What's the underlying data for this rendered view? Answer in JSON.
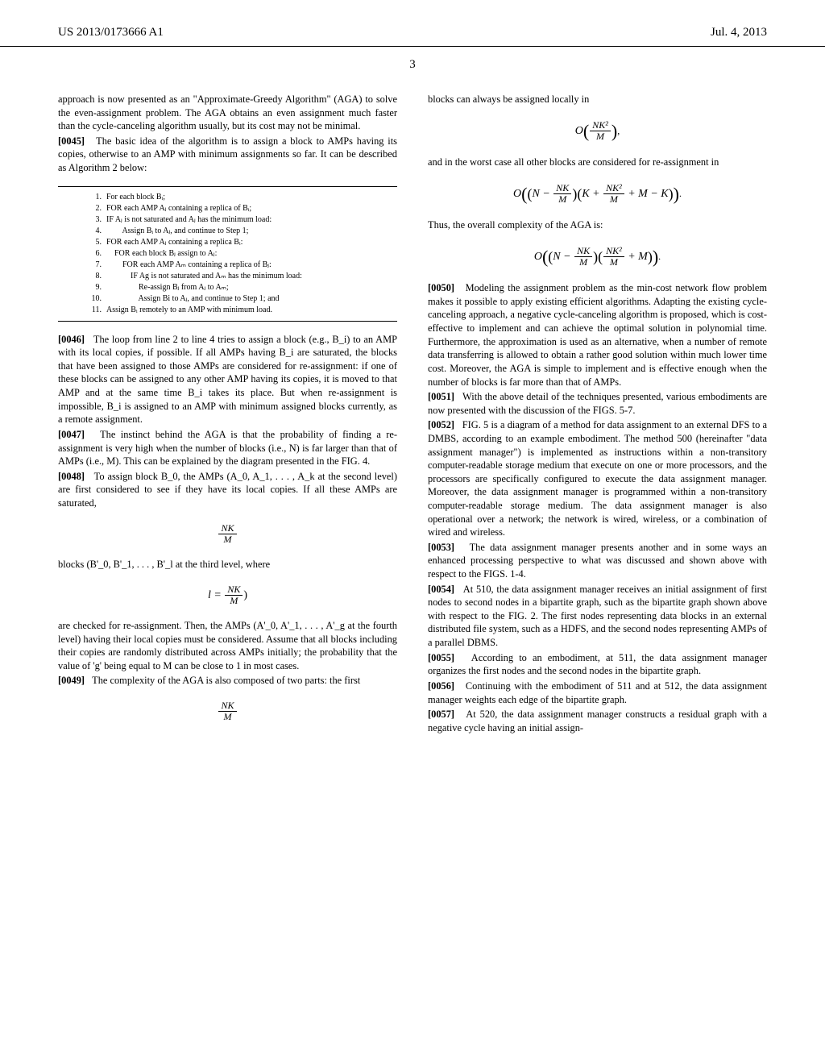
{
  "header": {
    "pub_number": "US 2013/0173666 A1",
    "date": "Jul. 4, 2013"
  },
  "page_number": "3",
  "left_col": {
    "p_intro": "approach is now presented as an \"Approximate-Greedy Algorithm\" (AGA) to solve the even-assignment problem. The AGA obtains an even assignment much faster than the cycle-canceling algorithm usually, but its cost may not be minimal.",
    "p0045_num": "[0045]",
    "p0045": "The basic idea of the algorithm is to assign a block to AMPs having its copies, otherwise to an AMP with minimum assignments so far. It can be described as Algorithm 2 below:",
    "algorithm": [
      {
        "n": "1.",
        "t": "For each block Bᵢ;",
        "indent": 0
      },
      {
        "n": "2.",
        "t": "FOR each AMP Aⱼ containing a replica of Bᵢ;",
        "indent": 0
      },
      {
        "n": "3.",
        "t": "IF Aⱼ is not saturated and Aⱼ has the minimum load:",
        "indent": 0
      },
      {
        "n": "4.",
        "t": "Assign Bᵢ to Aⱼ, and continue to Step 1;",
        "indent": 2
      },
      {
        "n": "5.",
        "t": "FOR each AMP Aⱼ containing a replica Bᵢ:",
        "indent": 0
      },
      {
        "n": "6.",
        "t": "FOR each block Bⱼ assign to Aⱼ:",
        "indent": 1
      },
      {
        "n": "7.",
        "t": "FOR each AMP Aₘ containing a replica of Bⱼ:",
        "indent": 2
      },
      {
        "n": "8.",
        "t": "IF Ag is not saturated and Aₘ has the minimum load:",
        "indent": 3
      },
      {
        "n": "9.",
        "t": "Re-assign Bⱼ from Aⱼ to Aₘ;",
        "indent": 4
      },
      {
        "n": "10.",
        "t": "Assign Bi to Aⱼ, and continue to Step 1; and",
        "indent": 4
      },
      {
        "n": "11.",
        "t": "Assign Bᵢ remotely to an AMP with minimum load.",
        "indent": 0
      }
    ],
    "p0046_num": "[0046]",
    "p0046": "The loop from line 2 to line 4 tries to assign a block (e.g., B_i) to an AMP with its local copies, if possible. If all AMPs having B_i are saturated, the blocks that have been assigned to those AMPs are considered for re-assignment: if one of these blocks can be assigned to any other AMP having its copies, it is moved to that AMP and at the same time B_i takes its place. But when re-assignment is impossible, B_i is assigned to an AMP with minimum assigned blocks currently, as a remote assignment.",
    "p0047_num": "[0047]",
    "p0047": "The instinct behind the AGA is that the probability of finding a re-assignment is very high when the number of blocks (i.e., N) is far larger than that of AMPs (i.e., M). This can be explained by the diagram presented in the FIG. 4.",
    "p0048_num": "[0048]",
    "p0048": "To assign block B_0, the AMPs (A_0, A_1, . . . , A_k at the second level) are first considered to see if they have its local copies. If all these AMPs are saturated,",
    "formula_nk_m": {
      "num": "NK",
      "den": "M"
    },
    "p_blocks_third": "blocks (B'_0, B'_1, . . . , B'_l at the third level, where",
    "formula_l": {
      "lhs": "l =",
      "num": "NK",
      "den": "M",
      "tail": ")"
    },
    "p_checked": "are checked for re-assignment. Then, the AMPs (A'_0, A'_1, . . . , A'_g at the fourth level) having their local copies must be considered. Assume that all blocks including their copies are randomly distributed across AMPs initially; the probability that the value of 'g' being equal to M can be close to 1 in most cases.",
    "p0049_num": "[0049]",
    "p0049": "The complexity of the AGA is also composed of two parts: the first",
    "formula_nk_m_2": {
      "num": "NK",
      "den": "M"
    }
  },
  "right_col": {
    "p_blocks_local": "blocks can always be assigned locally in",
    "formula_O1": {
      "num": "NK²",
      "den": "M"
    },
    "p_worst": "and in the worst case all other blocks are considered for re-assignment in",
    "formula_O2": {
      "outer_left_num": "NK",
      "outer_left_den": "M",
      "inner_num": "NK²",
      "inner_den": "M",
      "inner_tail": " + M − K"
    },
    "p_thus": "Thus, the overall complexity of the AGA is:",
    "formula_O3": {
      "outer_left_num": "NK",
      "outer_left_den": "M",
      "inner_num": "NK²",
      "inner_den": "M",
      "inner_tail": " + M"
    },
    "p0050_num": "[0050]",
    "p0050": "Modeling the assignment problem as the min-cost network flow problem makes it possible to apply existing efficient algorithms. Adapting the existing cycle-canceling approach, a negative cycle-canceling algorithm is proposed, which is cost-effective to implement and can achieve the optimal solution in polynomial time. Furthermore, the approximation is used as an alternative, when a number of remote data transferring is allowed to obtain a rather good solution within much lower time cost. Moreover, the AGA is simple to implement and is effective enough when the number of blocks is far more than that of AMPs.",
    "p0051_num": "[0051]",
    "p0051": "With the above detail of the techniques presented, various embodiments are now presented with the discussion of the FIGS. 5-7.",
    "p0052_num": "[0052]",
    "p0052": "FIG. 5 is a diagram of a method for data assignment to an external DFS to a DMBS, according to an example embodiment. The method 500 (hereinafter \"data assignment manager\") is implemented as instructions within a non-transitory computer-readable storage medium that execute on one or more processors, and the processors are specifically configured to execute the data assignment manager. Moreover, the data assignment manager is programmed within a non-transitory computer-readable storage medium. The data assignment manager is also operational over a network; the network is wired, wireless, or a combination of wired and wireless.",
    "p0053_num": "[0053]",
    "p0053": "The data assignment manager presents another and in some ways an enhanced processing perspective to what was discussed and shown above with respect to the FIGS. 1-4.",
    "p0054_num": "[0054]",
    "p0054": "At 510, the data assignment manager receives an initial assignment of first nodes to second nodes in a bipartite graph, such as the bipartite graph shown above with respect to the FIG. 2. The first nodes representing data blocks in an external distributed file system, such as a HDFS, and the second nodes representing AMPs of a parallel DBMS.",
    "p0055_num": "[0055]",
    "p0055": "According to an embodiment, at 511, the data assignment manager organizes the first nodes and the second nodes in the bipartite graph.",
    "p0056_num": "[0056]",
    "p0056": "Continuing with the embodiment of 511 and at 512, the data assignment manager weights each edge of the bipartite graph.",
    "p0057_num": "[0057]",
    "p0057": "At 520, the data assignment manager constructs a residual graph with a negative cycle having an initial assign-"
  }
}
